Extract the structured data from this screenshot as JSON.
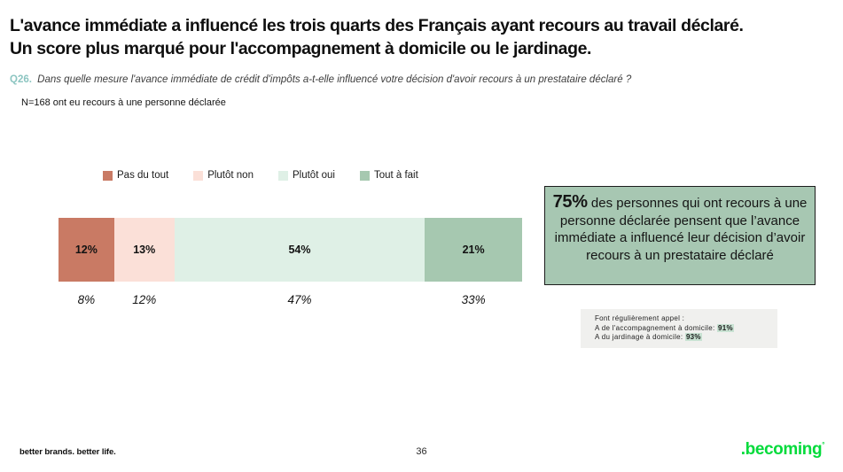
{
  "header": {
    "title_line1": "L'avance immédiate a influencé les trois quarts des Français ayant recours au travail déclaré.",
    "title_line2": "Un score plus marqué pour l'accompagnement à domicile ou le jardinage.",
    "question_number": "Q26.",
    "question_text": "Dans quelle mesure l'avance immédiate de crédit d'impôts a-t-elle influencé votre décision d'avoir recours à un prestataire déclaré ?",
    "sample_note": "N=168 ont eu recours à une personne déclarée"
  },
  "chart_data": {
    "type": "bar",
    "subtype": "horizontal_stacked_100pct",
    "legend_position": "top",
    "categories": [
      "Pas du tout",
      "Plutôt non",
      "Plutôt oui",
      "Tout à fait"
    ],
    "segments": [
      {
        "category": "Pas du tout",
        "value": 12,
        "secondary_value": 8,
        "color": "#C97A64"
      },
      {
        "category": "Plutôt non",
        "value": 13,
        "secondary_value": 12,
        "color": "#FBE0D8"
      },
      {
        "category": "Plutôt oui",
        "value": 54,
        "secondary_value": 47,
        "color": "#DFF0E6"
      },
      {
        "category": "Tout à fait",
        "value": 21,
        "secondary_value": 33,
        "color": "#A6C8B0"
      }
    ]
  },
  "insight": {
    "stat": "75%",
    "text": " des personnes qui ont recours à une personne déclarée pensent que l’avance immédiate a influencé leur décision d’avoir recours à un prestataire déclaré"
  },
  "note": {
    "title": "Font régulièrement appel :",
    "items": [
      {
        "label": "A de l'accompagnement à domicile: ",
        "value": "91%"
      },
      {
        "label": "A du jardinage à domicile: ",
        "value": "93%"
      }
    ]
  },
  "footer": {
    "tagline": "better brands. better life.",
    "page": "36",
    "logo": ".becoming",
    "logo_mark": "°"
  },
  "colors": {
    "accent_teal": "#8CC5C1",
    "insight_bg": "#A7C7B2",
    "note_bg": "#F0F0EE",
    "highlight_bg": "#C8E2D2",
    "logo_green": "#03DB3B"
  }
}
